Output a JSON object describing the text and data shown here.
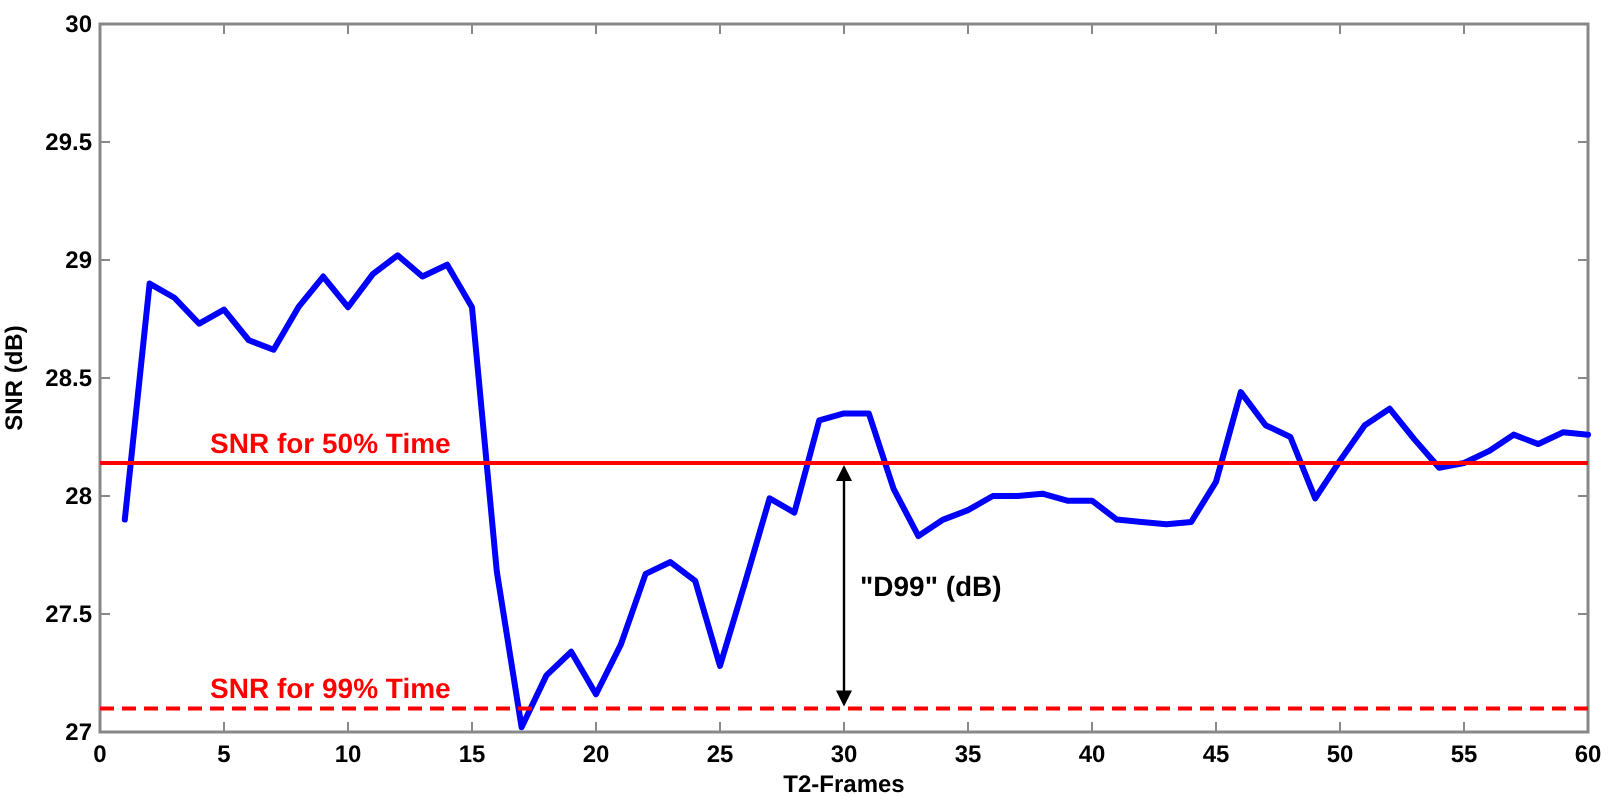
{
  "chart_data": {
    "type": "line",
    "xlabel": "T2-Frames",
    "ylabel": "SNR (dB)",
    "x": [
      1,
      2,
      3,
      4,
      5,
      6,
      7,
      8,
      9,
      10,
      11,
      12,
      13,
      14,
      15,
      16,
      17,
      18,
      19,
      20,
      21,
      22,
      23,
      24,
      25,
      26,
      27,
      28,
      29,
      30,
      31,
      32,
      33,
      34,
      35,
      36,
      37,
      38,
      39,
      40,
      41,
      42,
      43,
      44,
      45,
      46,
      47,
      48,
      49,
      50,
      51,
      52,
      53,
      54,
      55,
      56,
      57,
      58,
      59,
      60
    ],
    "series": [
      {
        "color": "#0000ff",
        "values": [
          27.9,
          28.9,
          28.84,
          28.73,
          28.79,
          28.66,
          28.62,
          28.8,
          28.93,
          28.8,
          28.94,
          29.02,
          28.93,
          28.98,
          28.8,
          27.68,
          27.02,
          27.24,
          27.34,
          27.16,
          27.37,
          27.67,
          27.72,
          27.64,
          27.28,
          27.63,
          27.99,
          27.93,
          28.32,
          28.35,
          28.35,
          28.03,
          27.83,
          27.9,
          27.94,
          28.0,
          28.0,
          28.01,
          27.98,
          27.98,
          27.9,
          27.89,
          27.88,
          27.89,
          28.06,
          28.44,
          28.3,
          28.25,
          27.99,
          28.15,
          28.3,
          28.37,
          28.24,
          28.12,
          28.14,
          28.19,
          28.26,
          28.22,
          28.27,
          28.26
        ]
      }
    ],
    "xlim": [
      0,
      60
    ],
    "xticks": [
      0,
      5,
      10,
      15,
      20,
      25,
      30,
      35,
      40,
      45,
      50,
      55,
      60
    ],
    "ylim": [
      27,
      30
    ],
    "yticks": [
      27,
      27.5,
      28,
      28.5,
      29,
      29.5,
      30
    ],
    "ref_lines": [
      {
        "axis": "y",
        "value": 28.14,
        "label": "SNR for 50% Time",
        "color": "#ff0000",
        "line_style": "solid"
      },
      {
        "axis": "y",
        "value": 27.1,
        "label": "SNR for 99% Time",
        "color": "#ff0000",
        "line_style": "dashed"
      }
    ],
    "annotations": [
      "\"D99\" (dB)"
    ],
    "grid": false,
    "marker": "none",
    "line_style": "solid"
  }
}
